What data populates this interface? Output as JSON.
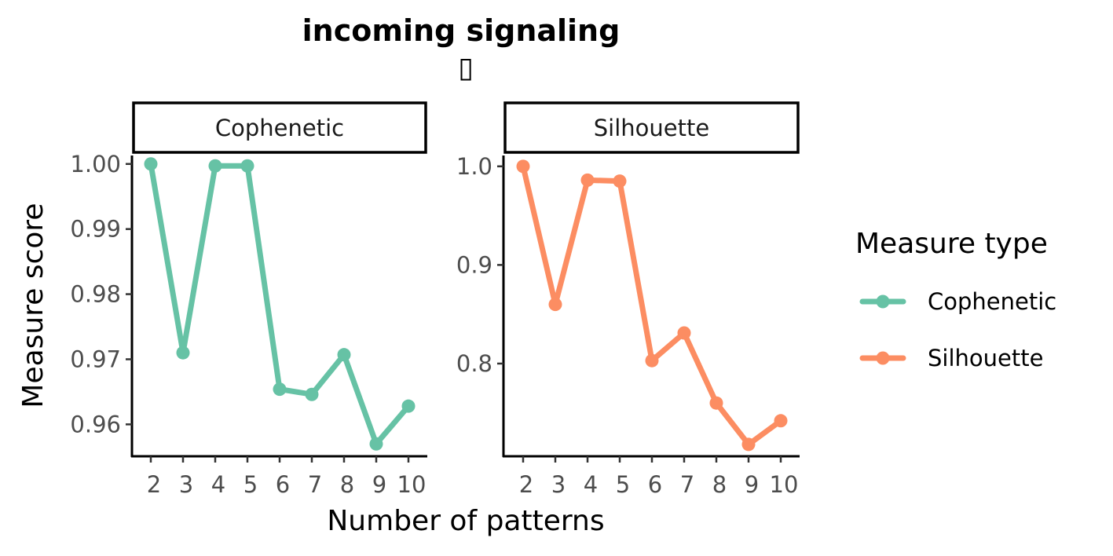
{
  "chart_data": {
    "type": "line",
    "title": "incoming signaling",
    "title_glyph": "▯",
    "xlabel": "Number of patterns",
    "ylabel": "Measure score",
    "x": [
      2,
      3,
      4,
      5,
      6,
      7,
      8,
      9,
      10
    ],
    "grid": false,
    "legend": {
      "title": "Measure type",
      "placement": "right",
      "entries": [
        "Cophenetic",
        "Silhouette"
      ]
    },
    "colors": {
      "Cophenetic": "#66c2a5",
      "Silhouette": "#fc8d62"
    },
    "panels": [
      {
        "name": "Cophenetic",
        "ylim": [
          0.9551,
          1.0013
        ],
        "yticks": [
          1.0,
          0.99,
          0.98,
          0.97,
          0.96
        ],
        "ytick_labels": [
          "1.00",
          "0.99",
          "0.98",
          "0.97",
          "0.96"
        ],
        "values": [
          1.0,
          0.971,
          0.9997,
          0.9997,
          0.9654,
          0.9646,
          0.9707,
          0.957,
          0.9628
        ]
      },
      {
        "name": "Silhouette",
        "ylim": [
          0.706,
          1.011
        ],
        "yticks": [
          1.0,
          0.9,
          0.8
        ],
        "ytick_labels": [
          "1.0",
          "0.9",
          "0.8"
        ],
        "values": [
          1.0,
          0.86,
          0.986,
          0.985,
          0.803,
          0.831,
          0.76,
          0.718,
          0.742
        ]
      }
    ]
  }
}
